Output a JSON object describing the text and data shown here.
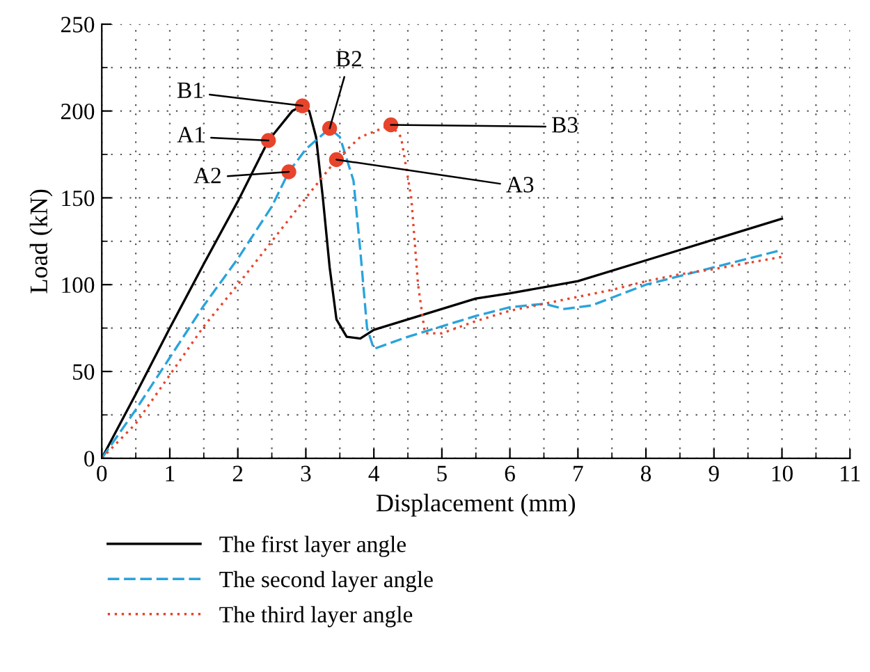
{
  "chart_data": {
    "type": "line",
    "xlabel": "Displacement (mm)",
    "ylabel": "Load (kN)",
    "xlim": [
      0,
      11
    ],
    "xticks": [
      0,
      1,
      2,
      3,
      4,
      5,
      6,
      7,
      8,
      9,
      10,
      11
    ],
    "ylim": [
      0,
      250
    ],
    "yticks": [
      0,
      50,
      100,
      150,
      200,
      250
    ],
    "grid": true,
    "legend": "bottom",
    "series": [
      {
        "name": "The first layer angle",
        "color": "#000000",
        "line_style": "solid",
        "x": [
          0,
          0.5,
          1,
          1.5,
          2,
          2.45,
          2.8,
          2.95,
          3.05,
          3.15,
          3.25,
          3.35,
          3.45,
          3.6,
          3.8,
          4,
          4.5,
          5,
          5.5,
          6,
          7,
          8,
          9,
          10
        ],
        "values": [
          0,
          37,
          75,
          112,
          148,
          183,
          200,
          203,
          200,
          185,
          150,
          110,
          80,
          70,
          69,
          74,
          80,
          86,
          92,
          95,
          102,
          114,
          126,
          138
        ]
      },
      {
        "name": "The second layer angle",
        "color": "#29a3dc",
        "line_style": "dashed",
        "x": [
          0,
          0.5,
          1,
          1.5,
          2,
          2.5,
          2.75,
          3,
          3.35,
          3.5,
          3.7,
          3.8,
          3.9,
          4,
          4.5,
          5,
          5.5,
          6,
          6.5,
          6.8,
          7.2,
          8,
          9,
          10
        ],
        "values": [
          0,
          28,
          58,
          88,
          115,
          145,
          165,
          178,
          190,
          185,
          160,
          120,
          75,
          63,
          70,
          76,
          82,
          87,
          89,
          86,
          88,
          100,
          110,
          120
        ]
      },
      {
        "name": "The third layer angle",
        "color": "#e8442c",
        "line_style": "dotted",
        "x": [
          0,
          0.5,
          1,
          1.5,
          2,
          2.5,
          3,
          3.45,
          3.8,
          4.25,
          4.4,
          4.55,
          4.65,
          4.75,
          5,
          5.5,
          6,
          6.5,
          7,
          7.5,
          8,
          8.5,
          9,
          10
        ],
        "values": [
          0,
          20,
          48,
          76,
          100,
          125,
          150,
          172,
          185,
          192,
          185,
          150,
          100,
          72,
          72,
          79,
          85,
          89,
          93,
          97,
          102,
          106,
          109,
          116
        ]
      },
      {
        "type": "scatter",
        "marker": "circle",
        "color": "#e8442c",
        "x": [
          2.45,
          2.95,
          2.75,
          3.35,
          3.45,
          4.25
        ],
        "values": [
          183,
          203,
          165,
          190,
          172,
          192
        ]
      }
    ],
    "annotations": [
      {
        "text": "A1",
        "x": 2.45,
        "y": 183
      },
      {
        "text": "B1",
        "x": 2.95,
        "y": 203
      },
      {
        "text": "A2",
        "x": 2.75,
        "y": 165
      },
      {
        "text": "B2",
        "x": 3.35,
        "y": 190
      },
      {
        "text": "A3",
        "x": 3.45,
        "y": 172
      },
      {
        "text": "B3",
        "x": 4.25,
        "y": 192
      }
    ]
  }
}
